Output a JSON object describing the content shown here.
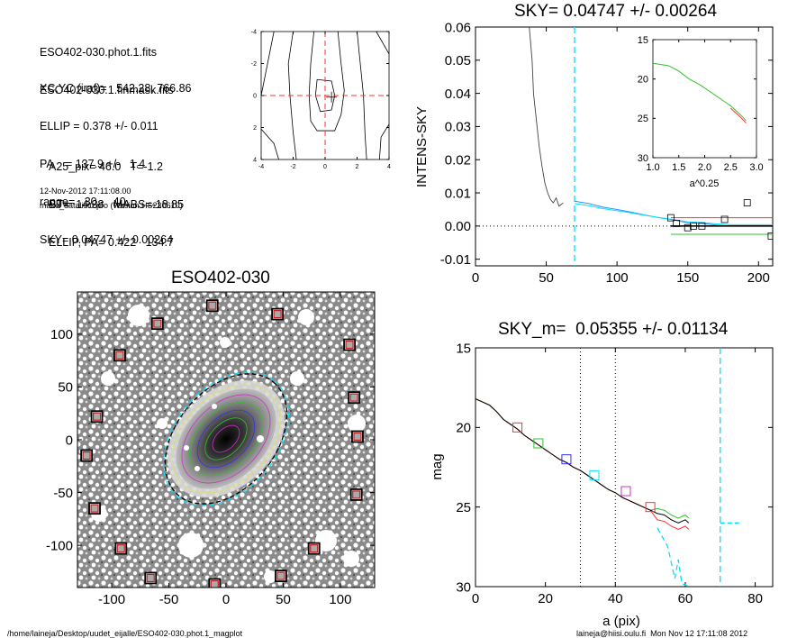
{
  "header": {
    "files": [
      "ESO402-030.phot.1.fits",
      "ESO402-030.1.finmask.fits"
    ],
    "params": [
      "XC,YC (iraf)=   542.28, 766.86",
      "ELLIP = 0.378 +/- 0.011",
      "PA    = 137.9 +/-   1.4",
      "range=   30.-   40.",
      "SKY= 0.04747 +/- 0.00264"
    ],
    "results": [
      "A25_pix= 46.0   T=-1.2",
      "BT=  14.38   MABS=-18.85",
      "ELLIP, PA= 0.422   134.7"
    ],
    "date": "12-Nov-2012 17:11:08.00",
    "program": "make_datalist0.pro (version HS230610)"
  },
  "footer": {
    "path": "/home/laineja/Desktop/uudet_eijalle/ESO402-030.phot.1_magplot",
    "user": "laineja@hiisi.oulu.fi  Mon Nov 12 17:11:08 2012"
  },
  "colors": {
    "cyan": "#00e0ff",
    "red": "#ff3030",
    "green": "#30c030",
    "blue": "#3030ff",
    "magenta": "#cc30cc",
    "gray": "#7a7a7a"
  },
  "chart_data": [
    {
      "type": "contour",
      "xlim": [
        -4,
        4
      ],
      "ylim": [
        -4,
        4
      ],
      "xticks": [
        "-4",
        "-2",
        "0",
        "2",
        "4"
      ],
      "yticks": [
        "4",
        "2",
        "0",
        "-2",
        "-4"
      ]
    },
    {
      "type": "line",
      "title": "SKY= 0.04747 +/- 0.00264",
      "ylabel": "INTENS-SKY",
      "xlim": [
        0,
        210
      ],
      "ylim": [
        -0.012,
        0.06
      ],
      "xticks": [
        "0",
        "50",
        "100",
        "150",
        "200"
      ],
      "yticks": [
        "0.06",
        "0.05",
        "0.04",
        "0.03",
        "0.02",
        "0.01",
        "0.00",
        "-0.01"
      ],
      "sky_annulus_x": 70,
      "series": [
        {
          "values": [
            [
              38,
              0.06
            ],
            [
              40,
              0.05
            ],
            [
              41,
              0.04
            ],
            [
              43,
              0.032
            ],
            [
              45,
              0.024
            ],
            [
              47,
              0.018
            ],
            [
              49,
              0.013
            ],
            [
              51,
              0.01
            ],
            [
              53,
              0.008
            ],
            [
              55,
              0.007
            ],
            [
              57,
              0.0085
            ],
            [
              59,
              0.006
            ],
            [
              60,
              0.0063
            ],
            [
              62,
              0.007
            ]
          ]
        },
        {
          "values": [
            [
              70,
              0.0075
            ],
            [
              80,
              0.0068
            ],
            [
              90,
              0.0057
            ],
            [
              100,
              0.005
            ],
            [
              110,
              0.0042
            ],
            [
              120,
              0.0033
            ],
            [
              130,
              0.0025
            ],
            [
              138,
              0.002
            ],
            [
              150,
              0.001
            ],
            [
              160,
              0.0008
            ],
            [
              170,
              0.0003
            ],
            [
              180,
              0.0
            ],
            [
              200,
              0.0
            ],
            [
              210,
              0.0
            ]
          ]
        }
      ],
      "boxes_x": [
        138,
        142,
        150,
        154,
        160,
        176,
        192,
        209
      ],
      "boxes_y": [
        0.0025,
        0.0008,
        -0.0005,
        0.0,
        0.0,
        0.002,
        0.007,
        -0.003
      ],
      "inset": {
        "xlabel": "a^0.25",
        "xlim": [
          1.0,
          3.0
        ],
        "ylim": [
          15,
          30
        ],
        "xticks": [
          "1.0",
          "1.5",
          "2.0",
          "2.5",
          "3.0"
        ],
        "yticks": [
          "15",
          "20",
          "25",
          "30"
        ],
        "values": [
          [
            1.0,
            18.0
          ],
          [
            1.3,
            18.3
          ],
          [
            1.5,
            19.0
          ],
          [
            1.7,
            20.0
          ],
          [
            1.9,
            20.7
          ],
          [
            2.1,
            21.6
          ],
          [
            2.3,
            22.5
          ],
          [
            2.5,
            23.4
          ],
          [
            2.7,
            24.6
          ],
          [
            2.8,
            25.3
          ]
        ]
      }
    },
    {
      "type": "image",
      "title": "ESO402-030",
      "xlim": [
        -130,
        130
      ],
      "ylim": [
        -140,
        140
      ],
      "xticks": [
        "-100",
        "-50",
        "0",
        "50",
        "100"
      ],
      "yticks": [
        "100",
        "50",
        "0",
        "-50",
        "-100"
      ],
      "sky_boxes": [
        [
          -12,
          127
        ],
        [
          -93,
          80
        ],
        [
          -60,
          110
        ],
        [
          45,
          119
        ],
        [
          108,
          90
        ],
        [
          -113,
          22
        ],
        [
          -122,
          -15
        ],
        [
          112,
          40
        ],
        [
          115,
          3
        ],
        [
          -115,
          -65
        ],
        [
          -92,
          -103
        ],
        [
          -66,
          -131
        ],
        [
          -10,
          -137
        ],
        [
          48,
          -129
        ],
        [
          77,
          -103
        ],
        [
          114,
          -52
        ]
      ]
    },
    {
      "type": "line",
      "title": "SKY_m=  0.05355 +/- 0.01134",
      "xlabel": "a (pix)",
      "ylabel": "mag",
      "xlim": [
        0,
        85
      ],
      "ylim": [
        15,
        30
      ],
      "xticks": [
        "0",
        "20",
        "40",
        "60",
        "80"
      ],
      "yticks": [
        "15",
        "20",
        "25",
        "30"
      ],
      "range_lines_x": [
        30,
        40
      ],
      "sky_line_x": 70,
      "values": [
        [
          0,
          18.2
        ],
        [
          2,
          18.4
        ],
        [
          4,
          18.6
        ],
        [
          6,
          19.0
        ],
        [
          8,
          19.5
        ],
        [
          10,
          19.8
        ],
        [
          12,
          20.1
        ],
        [
          14,
          20.5
        ],
        [
          16,
          20.8
        ],
        [
          18,
          21.1
        ],
        [
          20,
          21.4
        ],
        [
          22,
          21.7
        ],
        [
          24,
          22.0
        ],
        [
          26,
          22.2
        ],
        [
          28,
          22.5
        ],
        [
          30,
          22.7
        ],
        [
          32,
          23.0
        ],
        [
          34,
          23.3
        ],
        [
          36,
          23.6
        ],
        [
          38,
          23.9
        ],
        [
          40,
          24.1
        ],
        [
          42,
          24.4
        ],
        [
          44,
          24.6
        ],
        [
          46,
          24.8
        ],
        [
          48,
          25.0
        ],
        [
          50,
          25.2
        ],
        [
          52,
          25.4
        ],
        [
          54,
          25.5
        ],
        [
          56,
          25.8
        ],
        [
          58,
          26.0
        ],
        [
          60,
          25.8
        ],
        [
          61,
          26.0
        ]
      ],
      "markers": [
        [
          12,
          20.0,
          "red"
        ],
        [
          18,
          21.0,
          "green"
        ],
        [
          26,
          22.0,
          "blue"
        ],
        [
          34,
          23.0,
          "cyan"
        ],
        [
          43,
          24.0,
          "magenta"
        ],
        [
          50,
          25.0,
          "red"
        ]
      ]
    }
  ]
}
